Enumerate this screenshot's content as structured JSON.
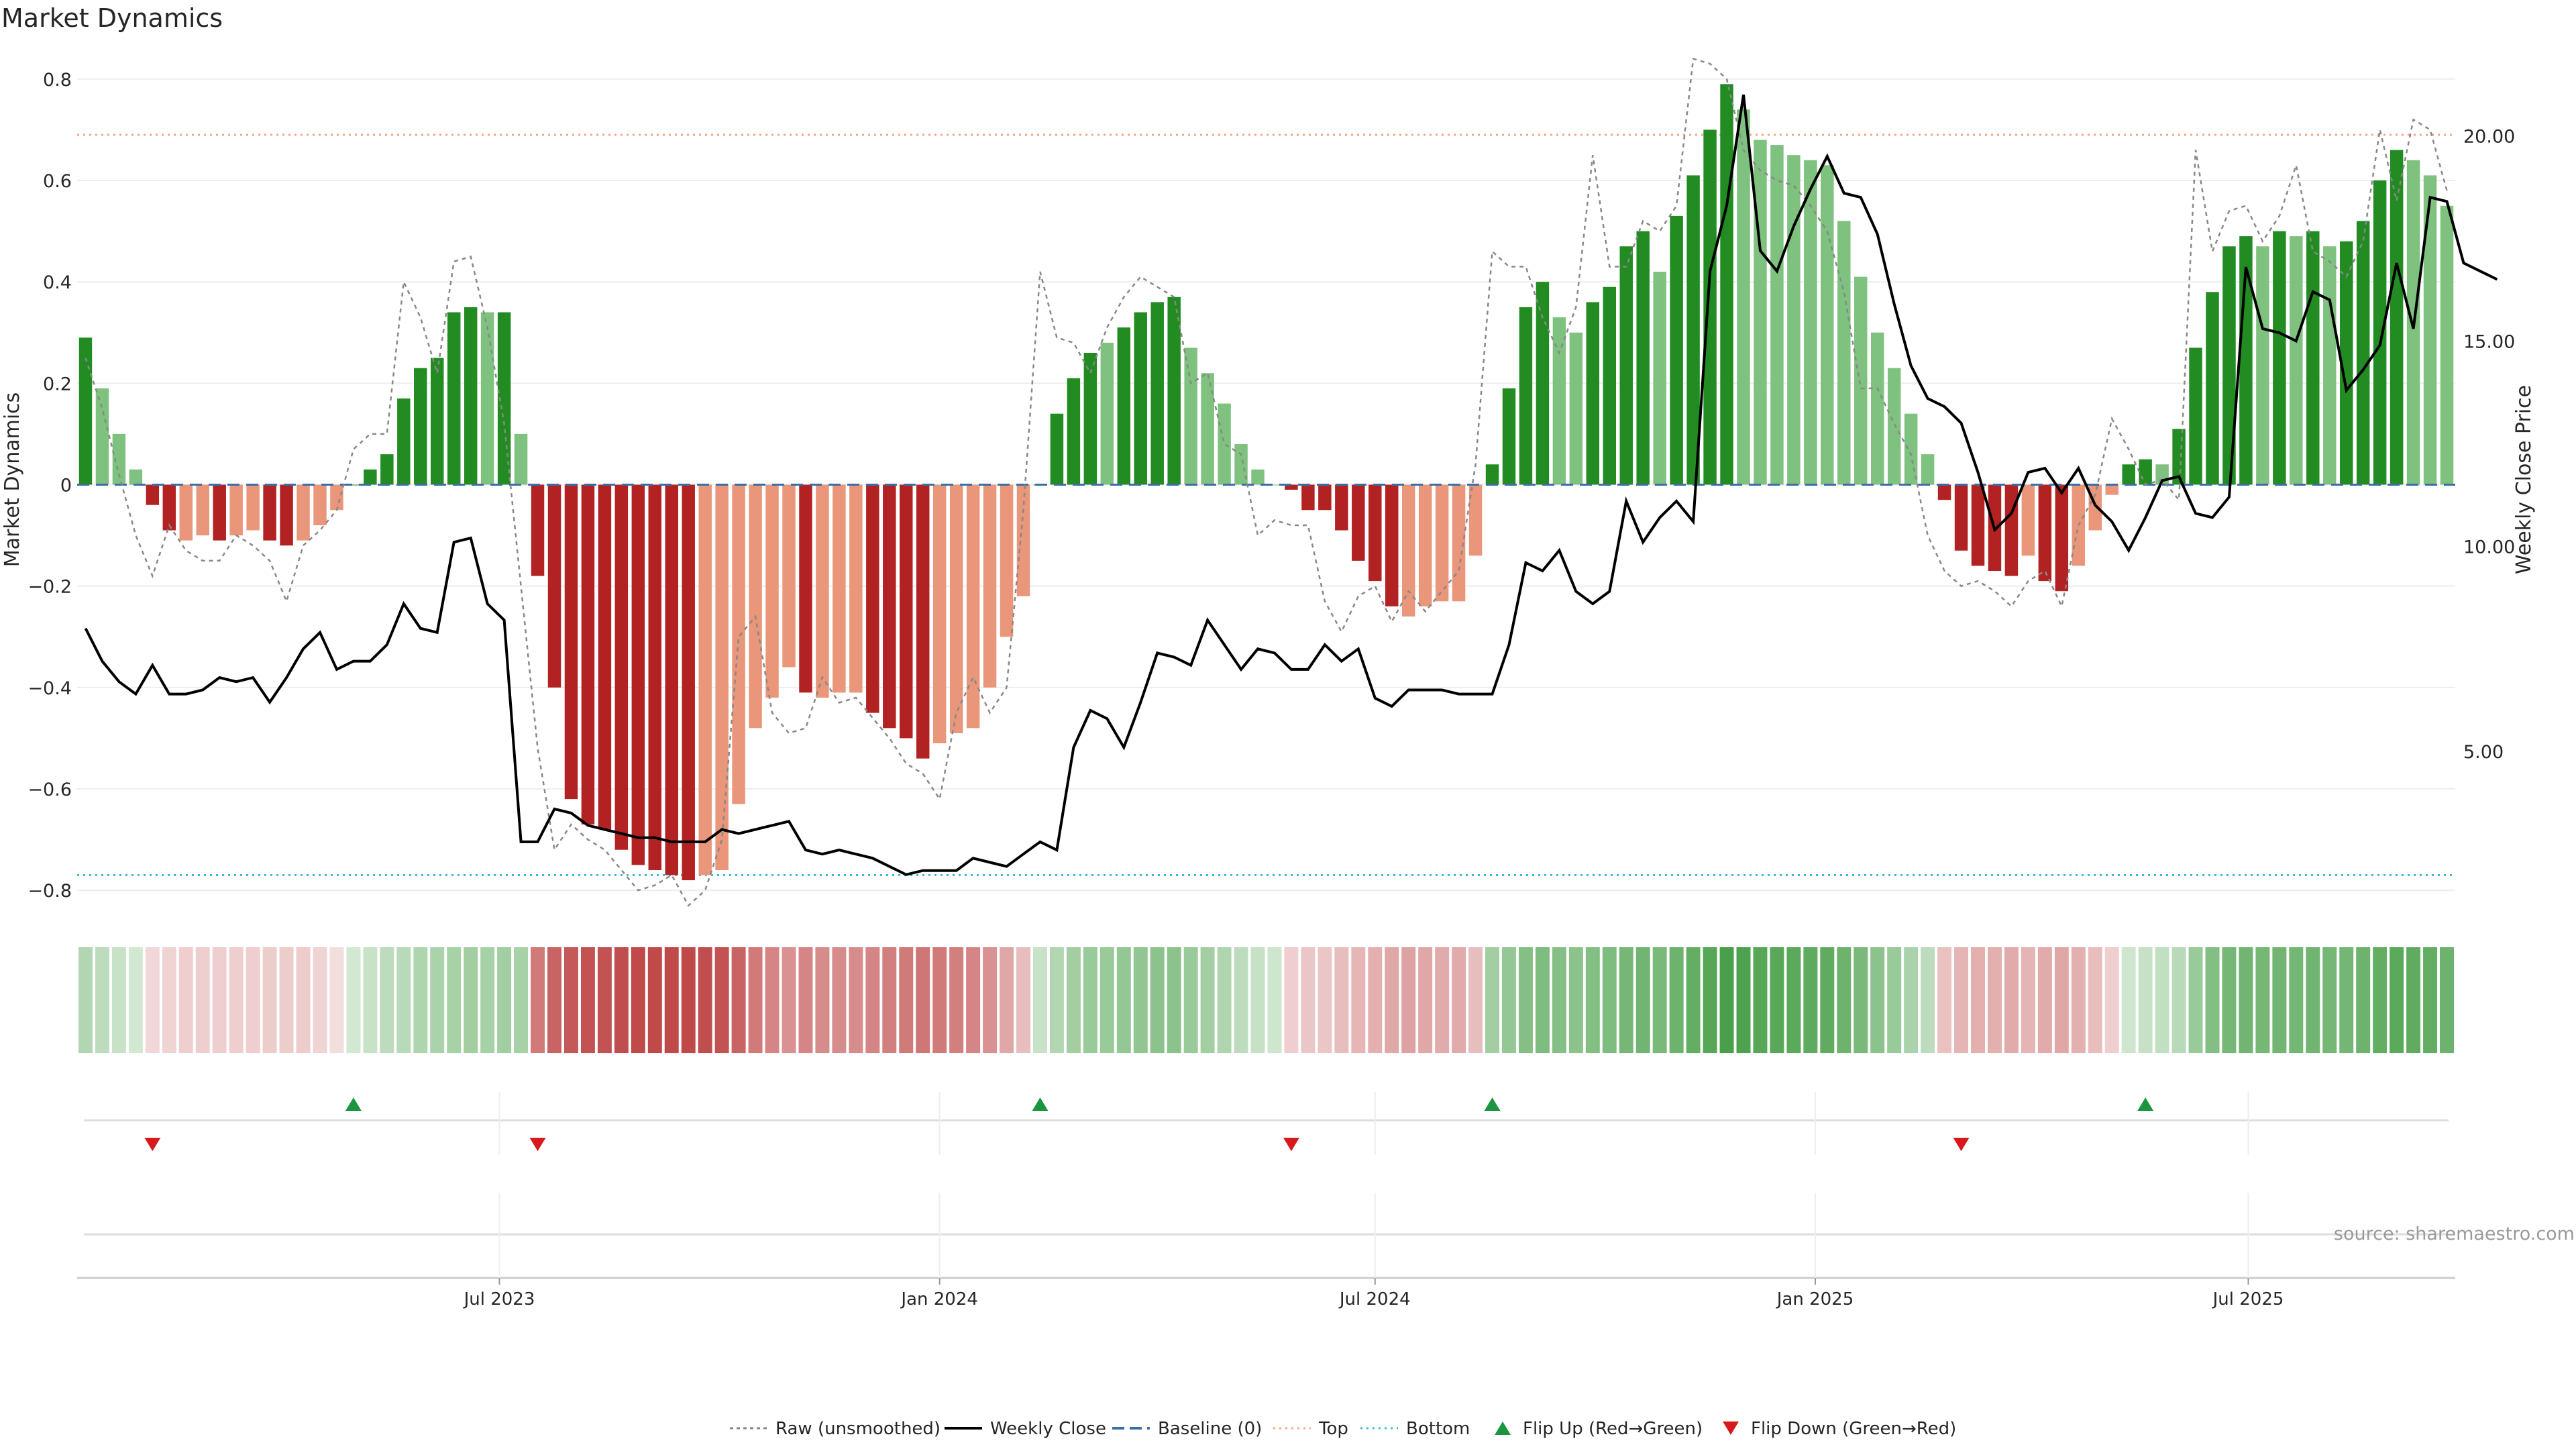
{
  "chart_data": {
    "type": "bar",
    "title": "Market Dynamics",
    "ylabel": "Market Dynamics",
    "y2label": "Weekly Close Price",
    "ylim": [
      -0.85,
      0.85
    ],
    "y2lim": [
      1.0,
      22.0
    ],
    "yticks": [
      "0.8",
      "0.6",
      "0.4",
      "0.2",
      "0",
      "−0.2",
      "−0.4",
      "−0.6",
      "−0.8"
    ],
    "y2ticks": [
      "20.00",
      "15.00",
      "10.00",
      "5.00"
    ],
    "xticks": [
      "Jul 2023",
      "Jan 2024",
      "Jul 2024",
      "Jan 2025",
      "Jul 2025"
    ],
    "start_date": "2023-01-09",
    "top_line": 0.69,
    "bottom_line": -0.77,
    "colors": {
      "strong_green": "#228B22",
      "light_green": "#7FC17F",
      "strong_red": "#B22222",
      "light_red": "#E9967A",
      "price": "#000000",
      "raw": "#888888",
      "baseline": "#3A6EA5",
      "top": "#F4A582",
      "bottom": "#3BB9D8",
      "flip_up": "#1A9641",
      "flip_down": "#D7191C"
    },
    "bars": [
      0.29,
      0.19,
      0.1,
      0.03,
      -0.04,
      -0.09,
      -0.11,
      -0.1,
      -0.11,
      -0.1,
      -0.09,
      -0.11,
      -0.12,
      -0.11,
      -0.08,
      -0.05,
      0.0,
      0.03,
      0.06,
      0.17,
      0.23,
      0.25,
      0.34,
      0.35,
      0.34,
      0.34,
      0.1,
      -0.18,
      -0.4,
      -0.62,
      -0.67,
      -0.68,
      -0.72,
      -0.75,
      -0.76,
      -0.77,
      -0.78,
      -0.77,
      -0.76,
      -0.63,
      -0.48,
      -0.42,
      -0.36,
      -0.41,
      -0.42,
      -0.41,
      -0.41,
      -0.45,
      -0.48,
      -0.5,
      -0.54,
      -0.51,
      -0.49,
      -0.48,
      -0.4,
      -0.3,
      -0.22,
      0.0,
      0.14,
      0.21,
      0.26,
      0.28,
      0.31,
      0.34,
      0.36,
      0.37,
      0.27,
      0.22,
      0.16,
      0.08,
      0.03,
      0.0,
      -0.01,
      -0.05,
      -0.05,
      -0.09,
      -0.15,
      -0.19,
      -0.24,
      -0.26,
      -0.24,
      -0.23,
      -0.23,
      -0.14,
      0.04,
      0.19,
      0.35,
      0.4,
      0.33,
      0.3,
      0.36,
      0.39,
      0.47,
      0.5,
      0.42,
      0.53,
      0.61,
      0.7,
      0.79,
      0.74,
      0.68,
      0.67,
      0.65,
      0.64,
      0.63,
      0.52,
      0.41,
      0.3,
      0.23,
      0.14,
      0.06,
      -0.03,
      -0.13,
      -0.16,
      -0.17,
      -0.18,
      -0.14,
      -0.19,
      -0.21,
      -0.16,
      -0.09,
      -0.02,
      0.04,
      0.05,
      0.04,
      0.11,
      0.27,
      0.38,
      0.47,
      0.49,
      0.47,
      0.5,
      0.49,
      0.5,
      0.47,
      0.48,
      0.52,
      0.6,
      0.66,
      0.64,
      0.61,
      0.55
    ],
    "bar_shades": [
      "g2",
      "g1",
      "g1",
      "g1",
      "r2",
      "r2",
      "r1",
      "r1",
      "r2",
      "r1",
      "r1",
      "r2",
      "r2",
      "r1",
      "r1",
      "r1",
      "g2",
      "g2",
      "g2",
      "g2",
      "g2",
      "g2",
      "g2",
      "g2",
      "g1",
      "g2",
      "g1",
      "r2",
      "r2",
      "r2",
      "r2",
      "r2",
      "r2",
      "r2",
      "r2",
      "r2",
      "r2",
      "r1",
      "r1",
      "r1",
      "r1",
      "r1",
      "r1",
      "r2",
      "r1",
      "r1",
      "r1",
      "r2",
      "r2",
      "r2",
      "r2",
      "r1",
      "r1",
      "r1",
      "r1",
      "r1",
      "r1",
      "g2",
      "g2",
      "g2",
      "g2",
      "g1",
      "g2",
      "g2",
      "g2",
      "g2",
      "g1",
      "g1",
      "g1",
      "g1",
      "g1",
      "g1",
      "r2",
      "r2",
      "r2",
      "r2",
      "r2",
      "r2",
      "r2",
      "r1",
      "r1",
      "r1",
      "r1",
      "r1",
      "g2",
      "g2",
      "g2",
      "g2",
      "g1",
      "g1",
      "g2",
      "g2",
      "g2",
      "g2",
      "g1",
      "g2",
      "g2",
      "g2",
      "g2",
      "g1",
      "g1",
      "g1",
      "g1",
      "g1",
      "g1",
      "g1",
      "g1",
      "g1",
      "g1",
      "g1",
      "g1",
      "r2",
      "r2",
      "r2",
      "r2",
      "r2",
      "r1",
      "r2",
      "r2",
      "r1",
      "r1",
      "r1",
      "g2",
      "g2",
      "g1",
      "g2",
      "g2",
      "g2",
      "g2",
      "g2",
      "g1",
      "g2",
      "g1",
      "g2",
      "g1",
      "g2",
      "g2",
      "g2",
      "g2",
      "g1",
      "g1",
      "g1"
    ],
    "raw": [
      0.25,
      0.15,
      0.02,
      -0.1,
      -0.18,
      -0.08,
      -0.13,
      -0.15,
      -0.15,
      -0.1,
      -0.12,
      -0.15,
      -0.23,
      -0.12,
      -0.09,
      -0.05,
      0.07,
      0.1,
      0.1,
      0.4,
      0.33,
      0.22,
      0.44,
      0.45,
      0.31,
      0.12,
      -0.2,
      -0.52,
      -0.72,
      -0.67,
      -0.7,
      -0.72,
      -0.76,
      -0.8,
      -0.79,
      -0.77,
      -0.83,
      -0.8,
      -0.7,
      -0.3,
      -0.26,
      -0.45,
      -0.49,
      -0.48,
      -0.38,
      -0.43,
      -0.42,
      -0.46,
      -0.5,
      -0.55,
      -0.57,
      -0.62,
      -0.45,
      -0.38,
      -0.45,
      -0.4,
      -0.05,
      0.42,
      0.29,
      0.28,
      0.22,
      0.31,
      0.37,
      0.41,
      0.39,
      0.37,
      0.2,
      0.22,
      0.08,
      0.06,
      -0.1,
      -0.07,
      -0.08,
      -0.08,
      -0.23,
      -0.29,
      -0.22,
      -0.2,
      -0.27,
      -0.21,
      -0.25,
      -0.21,
      -0.17,
      0.04,
      0.46,
      0.43,
      0.43,
      0.33,
      0.26,
      0.35,
      0.65,
      0.43,
      0.43,
      0.52,
      0.5,
      0.55,
      0.84,
      0.83,
      0.8,
      0.66,
      0.62,
      0.6,
      0.59,
      0.55,
      0.5,
      0.38,
      0.19,
      0.19,
      0.12,
      0.06,
      -0.1,
      -0.17,
      -0.2,
      -0.19,
      -0.21,
      -0.24,
      -0.19,
      -0.17,
      -0.24,
      -0.08,
      -0.02,
      0.13,
      0.07,
      0.0,
      0.01,
      -0.03,
      0.66,
      0.46,
      0.54,
      0.55,
      0.48,
      0.53,
      0.63,
      0.46,
      0.44,
      0.41,
      0.48,
      0.7,
      0.56,
      0.72,
      0.7,
      0.58
    ],
    "close": [
      8.0,
      7.2,
      6.7,
      6.4,
      7.1,
      6.4,
      6.4,
      6.5,
      6.8,
      6.7,
      6.8,
      6.2,
      6.8,
      7.5,
      7.9,
      7.0,
      7.2,
      7.2,
      7.6,
      8.6,
      8.0,
      7.9,
      10.1,
      10.2,
      8.6,
      8.2,
      2.8,
      2.8,
      3.6,
      3.5,
      3.2,
      3.1,
      3.0,
      2.9,
      2.9,
      2.8,
      2.8,
      2.8,
      3.1,
      3.0,
      3.1,
      3.2,
      3.3,
      2.6,
      2.5,
      2.6,
      2.5,
      2.4,
      2.2,
      2.0,
      2.1,
      2.1,
      2.1,
      2.4,
      2.3,
      2.2,
      2.5,
      2.8,
      2.6,
      5.1,
      6.0,
      5.8,
      5.1,
      6.2,
      7.4,
      7.3,
      7.1,
      8.2,
      7.6,
      7.0,
      7.5,
      7.4,
      7.0,
      7.0,
      7.6,
      7.2,
      7.5,
      6.3,
      6.1,
      6.5,
      6.5,
      6.5,
      6.4,
      6.4,
      6.4,
      7.6,
      9.6,
      9.4,
      9.9,
      8.9,
      8.6,
      8.9,
      11.1,
      10.1,
      10.7,
      11.1,
      10.6,
      16.7,
      18.3,
      21.0,
      17.2,
      16.7,
      17.8,
      18.7,
      19.5,
      18.6,
      18.5,
      17.6,
      15.9,
      14.4,
      13.6,
      13.4,
      13.0,
      11.8,
      10.4,
      10.8,
      11.8,
      11.9,
      11.3,
      11.9,
      11.0,
      10.6,
      9.9,
      10.7,
      11.6,
      11.7,
      10.8,
      10.7,
      11.2,
      16.8,
      15.3,
      15.2,
      15.0,
      16.2,
      16.0,
      13.8,
      14.3,
      14.9,
      16.9,
      15.3,
      18.5,
      18.4,
      16.9,
      16.7,
      16.5
    ],
    "flip_up_weeks": [
      16,
      57,
      84,
      123
    ],
    "flip_down_weeks": [
      4,
      27,
      72,
      112
    ],
    "intensity": [
      0.35,
      0.3,
      0.25,
      0.2,
      0.18,
      0.2,
      0.22,
      0.22,
      0.22,
      0.22,
      0.22,
      0.23,
      0.23,
      0.23,
      0.2,
      0.15,
      0.2,
      0.25,
      0.3,
      0.32,
      0.36,
      0.38,
      0.4,
      0.42,
      0.4,
      0.42,
      0.4,
      0.6,
      0.7,
      0.75,
      0.78,
      0.78,
      0.8,
      0.82,
      0.82,
      0.82,
      0.82,
      0.8,
      0.78,
      0.7,
      0.6,
      0.55,
      0.5,
      0.55,
      0.52,
      0.52,
      0.52,
      0.55,
      0.58,
      0.6,
      0.62,
      0.6,
      0.58,
      0.55,
      0.5,
      0.4,
      0.3,
      0.25,
      0.35,
      0.42,
      0.46,
      0.46,
      0.48,
      0.5,
      0.52,
      0.52,
      0.46,
      0.42,
      0.36,
      0.3,
      0.26,
      0.22,
      0.22,
      0.26,
      0.26,
      0.3,
      0.33,
      0.36,
      0.4,
      0.42,
      0.4,
      0.38,
      0.38,
      0.3,
      0.42,
      0.48,
      0.55,
      0.58,
      0.55,
      0.52,
      0.56,
      0.58,
      0.62,
      0.64,
      0.6,
      0.66,
      0.7,
      0.76,
      0.82,
      0.8,
      0.76,
      0.75,
      0.74,
      0.73,
      0.72,
      0.66,
      0.6,
      0.52,
      0.46,
      0.38,
      0.3,
      0.28,
      0.34,
      0.36,
      0.36,
      0.38,
      0.34,
      0.38,
      0.4,
      0.36,
      0.3,
      0.22,
      0.22,
      0.26,
      0.28,
      0.32,
      0.46,
      0.56,
      0.62,
      0.64,
      0.62,
      0.64,
      0.63,
      0.64,
      0.62,
      0.63,
      0.66,
      0.7,
      0.74,
      0.72,
      0.7,
      0.66
    ],
    "legend": [
      "Raw (unsmoothed)",
      "Weekly Close",
      "Baseline (0)",
      "Top",
      "Bottom",
      "Flip Up (Red→Green)",
      "Flip Down (Green→Red)"
    ],
    "source": "source: sharemaestro.com"
  }
}
